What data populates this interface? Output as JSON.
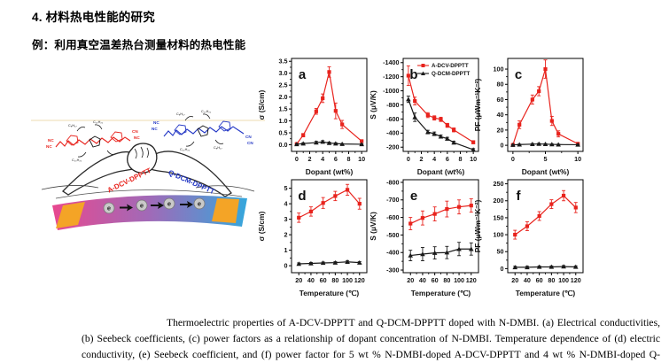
{
  "page": {
    "title": "4. 材料热电性能的研究",
    "subtitle": "例：利用真空温差热台测量材料的热电性能"
  },
  "illustration": {
    "left_molecule_label": "A-DCV-DPPTT",
    "right_molecule_label": "Q-DCM-DPPTT",
    "electron_symbol": "e",
    "end_groups": {
      "nc": "NC",
      "cn": "CN"
    },
    "side_chains": {
      "octyl": "C₈H₁₇",
      "decyl": "C₁₀H₂₁"
    },
    "colors": {
      "left_molecule": "#e8231d",
      "right_molecule": "#2337c5",
      "band_left": "#e8488f",
      "band_mid": "#a06ab8",
      "band_right": "#35a7dc",
      "electrode": "#f4a426"
    }
  },
  "caption": {
    "text": "Thermoelectric properties of A-DCV-DPPTT and Q-DCM-DPPTT doped with N-DMBI. (a) Electrical conductivities, (b) Seebeck coefficients, (c) power factors as a relationship of dopant concentration of N-DMBI. Temperature dependence of (d) electric conductivity, (e) Seebeck coefficient, and (f) power factor for 5 wt % N-DMBI-doped A-DCV-DPPTT and 4 wt % N-DMBI-doped Q-DCM-DPPTT. Each data point is an average of at least 10 results and showed good repeatability."
  },
  "series_colors": {
    "A-DCV-DPPTT": "#e8231d",
    "Q-DCM-DPPTT": "#1a1a1a"
  },
  "chart_data": [
    {
      "id": "a",
      "type": "line",
      "panel_label": "a",
      "xlabel": "Dopant (wt%)",
      "ylabel": "σ (S/cm)",
      "xlim": [
        -0.8,
        10.8
      ],
      "ylim": [
        -0.28,
        3.62
      ],
      "xticks": [
        0,
        2,
        4,
        6,
        8,
        10
      ],
      "xtick_labels": [
        "0",
        "2",
        "4",
        "6",
        "8",
        "10"
      ],
      "yticks": [
        0,
        0.5,
        1,
        1.5,
        2,
        2.5,
        3,
        3.5
      ],
      "ytick_labels": [
        "0.0",
        "0.5",
        "1.0",
        "1.5",
        "2.0",
        "2.5",
        "3.0",
        "3.5"
      ],
      "x": [
        0,
        1,
        3,
        4,
        5,
        6,
        7,
        10
      ],
      "series": [
        {
          "name": "A-DCV-DPPTT",
          "color": "#e8231d",
          "marker": "square",
          "values": [
            0.03,
            0.4,
            1.4,
            1.95,
            3.05,
            1.42,
            0.85,
            0.15
          ],
          "errors": [
            0.03,
            0.07,
            0.12,
            0.18,
            0.22,
            0.33,
            0.17,
            0.05
          ]
        },
        {
          "name": "Q-DCM-DPPTT",
          "color": "#1a1a1a",
          "marker": "triangle",
          "values": [
            0.02,
            0.05,
            0.09,
            0.12,
            0.07,
            0.05,
            0.03,
            0.02
          ],
          "errors": [
            0.02,
            0.03,
            0.05,
            0.05,
            0.04,
            0.03,
            0.02,
            0.02
          ]
        }
      ]
    },
    {
      "id": "b",
      "type": "line",
      "panel_label": "b",
      "show_legend": true,
      "xlabel": "Dopant (wt%)",
      "ylabel": "S (μV/K)",
      "xlim": [
        -0.8,
        10.8
      ],
      "ylim": [
        -140,
        -1460
      ],
      "xticks": [
        0,
        2,
        4,
        6,
        8,
        10
      ],
      "xtick_labels": [
        "0",
        "2",
        "4",
        "6",
        "8",
        "10"
      ],
      "yticks": [
        -200,
        -400,
        -600,
        -800,
        -1000,
        -1200,
        -1400
      ],
      "ytick_labels": [
        "-200",
        "-400",
        "-600",
        "-800",
        "-1000",
        "-1200",
        "-1400"
      ],
      "x": [
        0,
        1,
        3,
        4,
        5,
        6,
        7,
        10
      ],
      "series": [
        {
          "name": "A-DCV-DPPTT",
          "color": "#e8231d",
          "marker": "square",
          "values": [
            -1215,
            -855,
            -655,
            -615,
            -595,
            -510,
            -445,
            -270
          ],
          "errors": [
            140,
            55,
            35,
            30,
            30,
            28,
            28,
            22
          ]
        },
        {
          "name": "Q-DCM-DPPTT",
          "color": "#1a1a1a",
          "marker": "triangle",
          "values": [
            -880,
            -625,
            -415,
            -390,
            -350,
            -320,
            -265,
            -165
          ],
          "errors": [
            45,
            60,
            25,
            25,
            22,
            20,
            20,
            15
          ]
        }
      ]
    },
    {
      "id": "c",
      "type": "line",
      "panel_label": "c",
      "xlabel": "Dopant (wt%)",
      "ylabel": "PF (μWm⁻¹K⁻²)",
      "xlim": [
        -0.8,
        10.8
      ],
      "ylim": [
        -8,
        114
      ],
      "xticks": [
        0,
        5,
        10
      ],
      "xtick_labels": [
        "0",
        "5",
        "10"
      ],
      "yticks": [
        0,
        20,
        40,
        60,
        80,
        100
      ],
      "ytick_labels": [
        "0",
        "20",
        "40",
        "60",
        "80",
        "100"
      ],
      "x": [
        0,
        1,
        3,
        4,
        5,
        6,
        7,
        10
      ],
      "series": [
        {
          "name": "A-DCV-DPPTT",
          "color": "#e8231d",
          "marker": "square",
          "values": [
            0.5,
            27,
            60,
            71,
            100,
            32,
            15,
            2
          ],
          "errors": [
            1,
            5,
            6,
            6,
            12,
            6,
            4,
            1
          ]
        },
        {
          "name": "Q-DCM-DPPTT",
          "color": "#1a1a1a",
          "marker": "triangle",
          "values": [
            0.5,
            1,
            1.5,
            1.8,
            1.5,
            1.2,
            1,
            0.8
          ],
          "errors": [
            0.5,
            0.6,
            0.8,
            0.8,
            0.7,
            0.6,
            0.5,
            0.5
          ]
        }
      ]
    },
    {
      "id": "d",
      "type": "line",
      "panel_label": "d",
      "xlabel": "Temperature (℃)",
      "ylabel": "σ (S/cm)",
      "xlim": [
        8,
        132
      ],
      "ylim": [
        -0.45,
        5.55
      ],
      "xticks": [
        20,
        40,
        60,
        80,
        100,
        120
      ],
      "xtick_labels": [
        "20",
        "40",
        "60",
        "80",
        "100",
        "120"
      ],
      "yticks": [
        0,
        1,
        2,
        3,
        4,
        5
      ],
      "ytick_labels": [
        "0",
        "1",
        "2",
        "3",
        "4",
        "5"
      ],
      "x": [
        20,
        40,
        60,
        80,
        100,
        120
      ],
      "series": [
        {
          "name": "A-DCV-DPPTT",
          "color": "#e8231d",
          "marker": "square",
          "values": [
            3.1,
            3.5,
            4.05,
            4.5,
            4.9,
            4.0
          ],
          "errors": [
            0.3,
            0.3,
            0.35,
            0.3,
            0.35,
            0.35
          ]
        },
        {
          "name": "Q-DCM-DPPTT",
          "color": "#1a1a1a",
          "marker": "triangle",
          "values": [
            0.12,
            0.15,
            0.18,
            0.2,
            0.25,
            0.2
          ],
          "errors": [
            0.06,
            0.06,
            0.06,
            0.06,
            0.08,
            0.06
          ]
        }
      ]
    },
    {
      "id": "e",
      "type": "line",
      "panel_label": "e",
      "xlabel": "Temperature (℃)",
      "ylabel": "S (μV/K)",
      "xlim": [
        8,
        132
      ],
      "ylim": [
        -285,
        -815
      ],
      "xticks": [
        20,
        40,
        60,
        80,
        100,
        120
      ],
      "xtick_labels": [
        "20",
        "40",
        "60",
        "80",
        "100",
        "120"
      ],
      "yticks": [
        -300,
        -400,
        -500,
        -600,
        -700,
        -800
      ],
      "ytick_labels": [
        "-300",
        "-400",
        "-500",
        "-600",
        "-700",
        "-800"
      ],
      "x": [
        20,
        40,
        60,
        80,
        100,
        120
      ],
      "series": [
        {
          "name": "A-DCV-DPPTT",
          "color": "#e8231d",
          "marker": "square",
          "values": [
            -565,
            -597,
            -620,
            -648,
            -660,
            -668
          ],
          "errors": [
            35,
            40,
            40,
            45,
            40,
            38
          ]
        },
        {
          "name": "Q-DCM-DPPTT",
          "color": "#1a1a1a",
          "marker": "triangle",
          "values": [
            -383,
            -391,
            -398,
            -400,
            -420,
            -420
          ],
          "errors": [
            30,
            38,
            35,
            35,
            38,
            35
          ]
        }
      ]
    },
    {
      "id": "f",
      "type": "line",
      "panel_label": "f",
      "xlabel": "Temperature (℃)",
      "ylabel": "PF (μWm⁻¹K⁻²)",
      "xlim": [
        8,
        132
      ],
      "ylim": [
        -12,
        262
      ],
      "xticks": [
        20,
        40,
        60,
        80,
        100,
        120
      ],
      "xtick_labels": [
        "20",
        "40",
        "60",
        "80",
        "100",
        "120"
      ],
      "yticks": [
        0,
        50,
        100,
        150,
        200,
        250
      ],
      "ytick_labels": [
        "0",
        "50",
        "100",
        "150",
        "200",
        "250"
      ],
      "x": [
        20,
        40,
        60,
        80,
        100,
        120
      ],
      "series": [
        {
          "name": "A-DCV-DPPTT",
          "color": "#e8231d",
          "marker": "square",
          "values": [
            100,
            125,
            155,
            190,
            215,
            180
          ],
          "errors": [
            13,
            13,
            13,
            13,
            15,
            15
          ]
        },
        {
          "name": "Q-DCM-DPPTT",
          "color": "#1a1a1a",
          "marker": "triangle",
          "values": [
            4,
            4,
            5,
            5,
            6,
            5
          ],
          "errors": [
            3,
            3,
            3,
            3,
            3,
            3
          ]
        }
      ]
    }
  ]
}
